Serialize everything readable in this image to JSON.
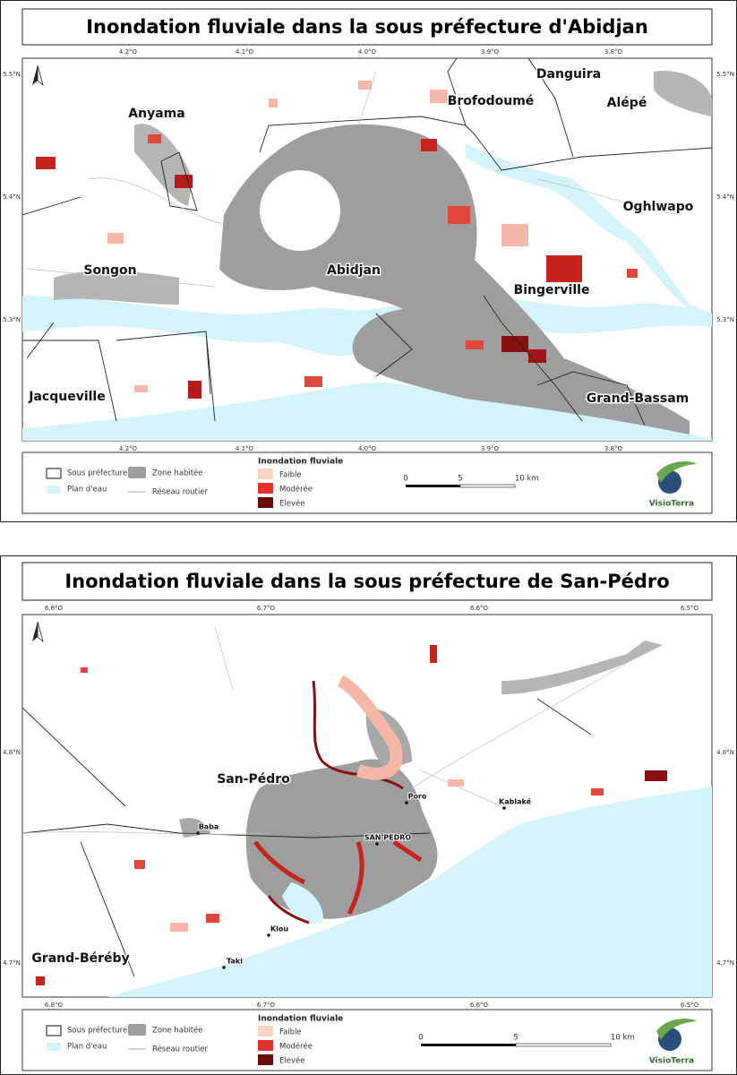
{
  "maps": [
    {
      "title": "Inondation fluviale dans la sous préfecture d'Abidjan",
      "lon_labels": [
        "4.2°O",
        "4.1°O",
        "4.0°O",
        "3.9°O",
        "3.8°O"
      ],
      "lat_labels": [
        "5.5°N",
        "5.4°N",
        "5.3°N"
      ],
      "places": [
        "Anyama",
        "Brofodoumé",
        "Danguira",
        "Alépé",
        "Oghlwapo",
        "Songon",
        "Abidjan",
        "Bingerville",
        "Jacqueville",
        "Grand-Bassam"
      ],
      "small_places": [],
      "legend": {
        "sous_prefecture": "Sous préfecture",
        "zone_habitee": "Zone habitée",
        "plan_eau": "Plan d'eau",
        "reseau_routier": "Réseau routier",
        "flood_title": "Inondation fluviale",
        "faible": "Faible",
        "moderee": "Modérée",
        "elevee": "Elevée",
        "scale": [
          "0",
          "5",
          "10 km"
        ],
        "logo": "VisioTerra"
      }
    },
    {
      "title": "Inondation fluviale dans la sous préfecture de San-Pédro",
      "lon_labels": [
        "6.8°O",
        "6.7°O",
        "6.6°O",
        "6.5°O"
      ],
      "lat_labels": [
        "4.8°N",
        "4.7°N"
      ],
      "places": [
        "San-Pédro",
        "Grand-Béréby"
      ],
      "small_places": [
        "Baba",
        "Poro",
        "Kablaké",
        "SAN PEDRO",
        "Klou",
        "Taki"
      ],
      "legend": {
        "sous_prefecture": "Sous préfecture",
        "zone_habitee": "Zone habitée",
        "plan_eau": "Plan d'eau",
        "reseau_routier": "Réseau routier",
        "flood_title": "Inondation fluviale",
        "faible": "Faible",
        "moderee": "Modérée",
        "elevee": "Elevée",
        "scale": [
          "0",
          "5",
          "10 km"
        ],
        "logo": "VisioTerra"
      }
    }
  ]
}
